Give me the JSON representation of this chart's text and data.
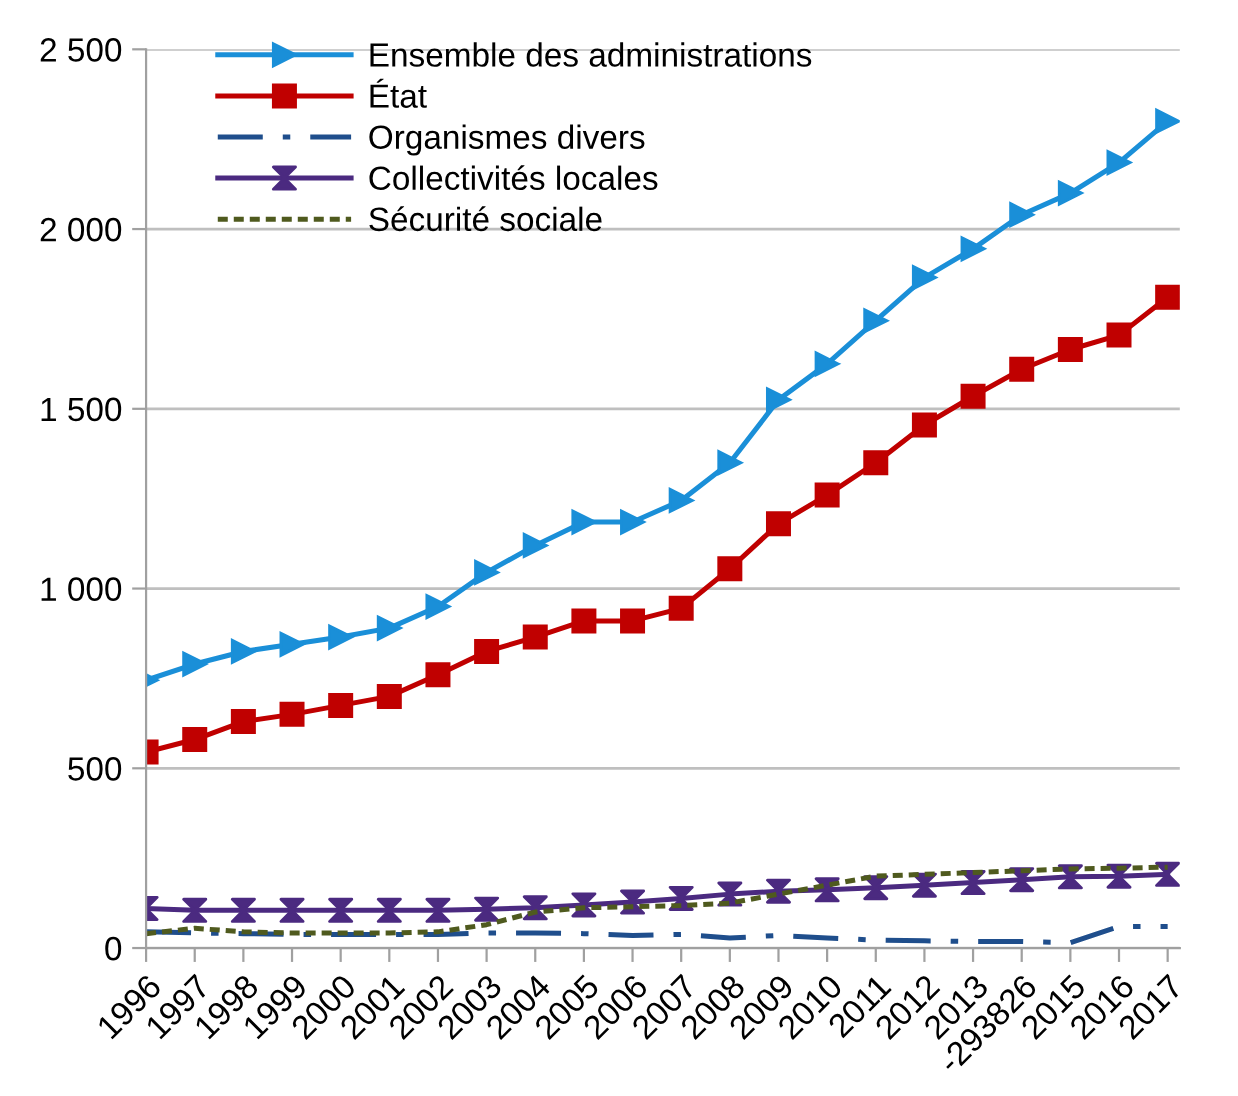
{
  "chart_data": {
    "type": "line",
    "categories": [
      "1996",
      "1997",
      "1998",
      "1999",
      "2000",
      "2001",
      "2002",
      "2003",
      "2004",
      "2005",
      "2006",
      "2007",
      "2008",
      "2009",
      "2010",
      "2011",
      "2012",
      "2013",
      "-293826",
      "2015",
      "2016",
      "2017"
    ],
    "series": [
      {
        "name": "Ensemble des administrations",
        "color": "#1a8fd8",
        "marker": "triangle",
        "line_style": "solid",
        "values": [
          745,
          790,
          825,
          845,
          865,
          890,
          950,
          1045,
          1120,
          1185,
          1185,
          1245,
          1350,
          1525,
          1625,
          1745,
          1865,
          1945,
          2040,
          2100,
          2185,
          2300
        ]
      },
      {
        "name": "État",
        "color": "#c00000",
        "marker": "square",
        "line_style": "solid",
        "values": [
          545,
          580,
          630,
          650,
          675,
          700,
          760,
          825,
          865,
          910,
          910,
          945,
          1055,
          1180,
          1260,
          1350,
          1455,
          1535,
          1610,
          1665,
          1705,
          1810
        ]
      },
      {
        "name": "Organismes divers",
        "color": "#1f4e8c",
        "marker": "none",
        "line_style": "dashed",
        "values": [
          45,
          42,
          40,
          38,
          38,
          38,
          38,
          42,
          42,
          40,
          35,
          38,
          28,
          35,
          28,
          22,
          20,
          18,
          18,
          15,
          60,
          60
        ]
      },
      {
        "name": "Collectivités locales",
        "color": "#4b2a80",
        "marker": "cross",
        "line_style": "solid",
        "values": [
          110,
          105,
          105,
          105,
          105,
          105,
          105,
          108,
          112,
          120,
          128,
          138,
          150,
          158,
          162,
          168,
          175,
          182,
          190,
          198,
          200,
          205
        ]
      },
      {
        "name": "Sécurité sociale",
        "color": "#4f5a1e",
        "marker": "none",
        "line_style": "dotted",
        "values": [
          40,
          55,
          45,
          42,
          42,
          42,
          45,
          65,
          100,
          112,
          115,
          118,
          125,
          150,
          175,
          200,
          205,
          210,
          215,
          220,
          222,
          225
        ]
      }
    ],
    "ylim": [
      0,
      2500
    ],
    "yticks": [
      {
        "value": 0,
        "label": "0"
      },
      {
        "value": 500,
        "label": "500"
      },
      {
        "value": 1000,
        "label": "1 000"
      },
      {
        "value": 1500,
        "label": "1 500"
      },
      {
        "value": 2000,
        "label": "2 000"
      },
      {
        "value": 2500,
        "label": "2 500"
      }
    ],
    "grid": "y",
    "legend": "top left"
  }
}
